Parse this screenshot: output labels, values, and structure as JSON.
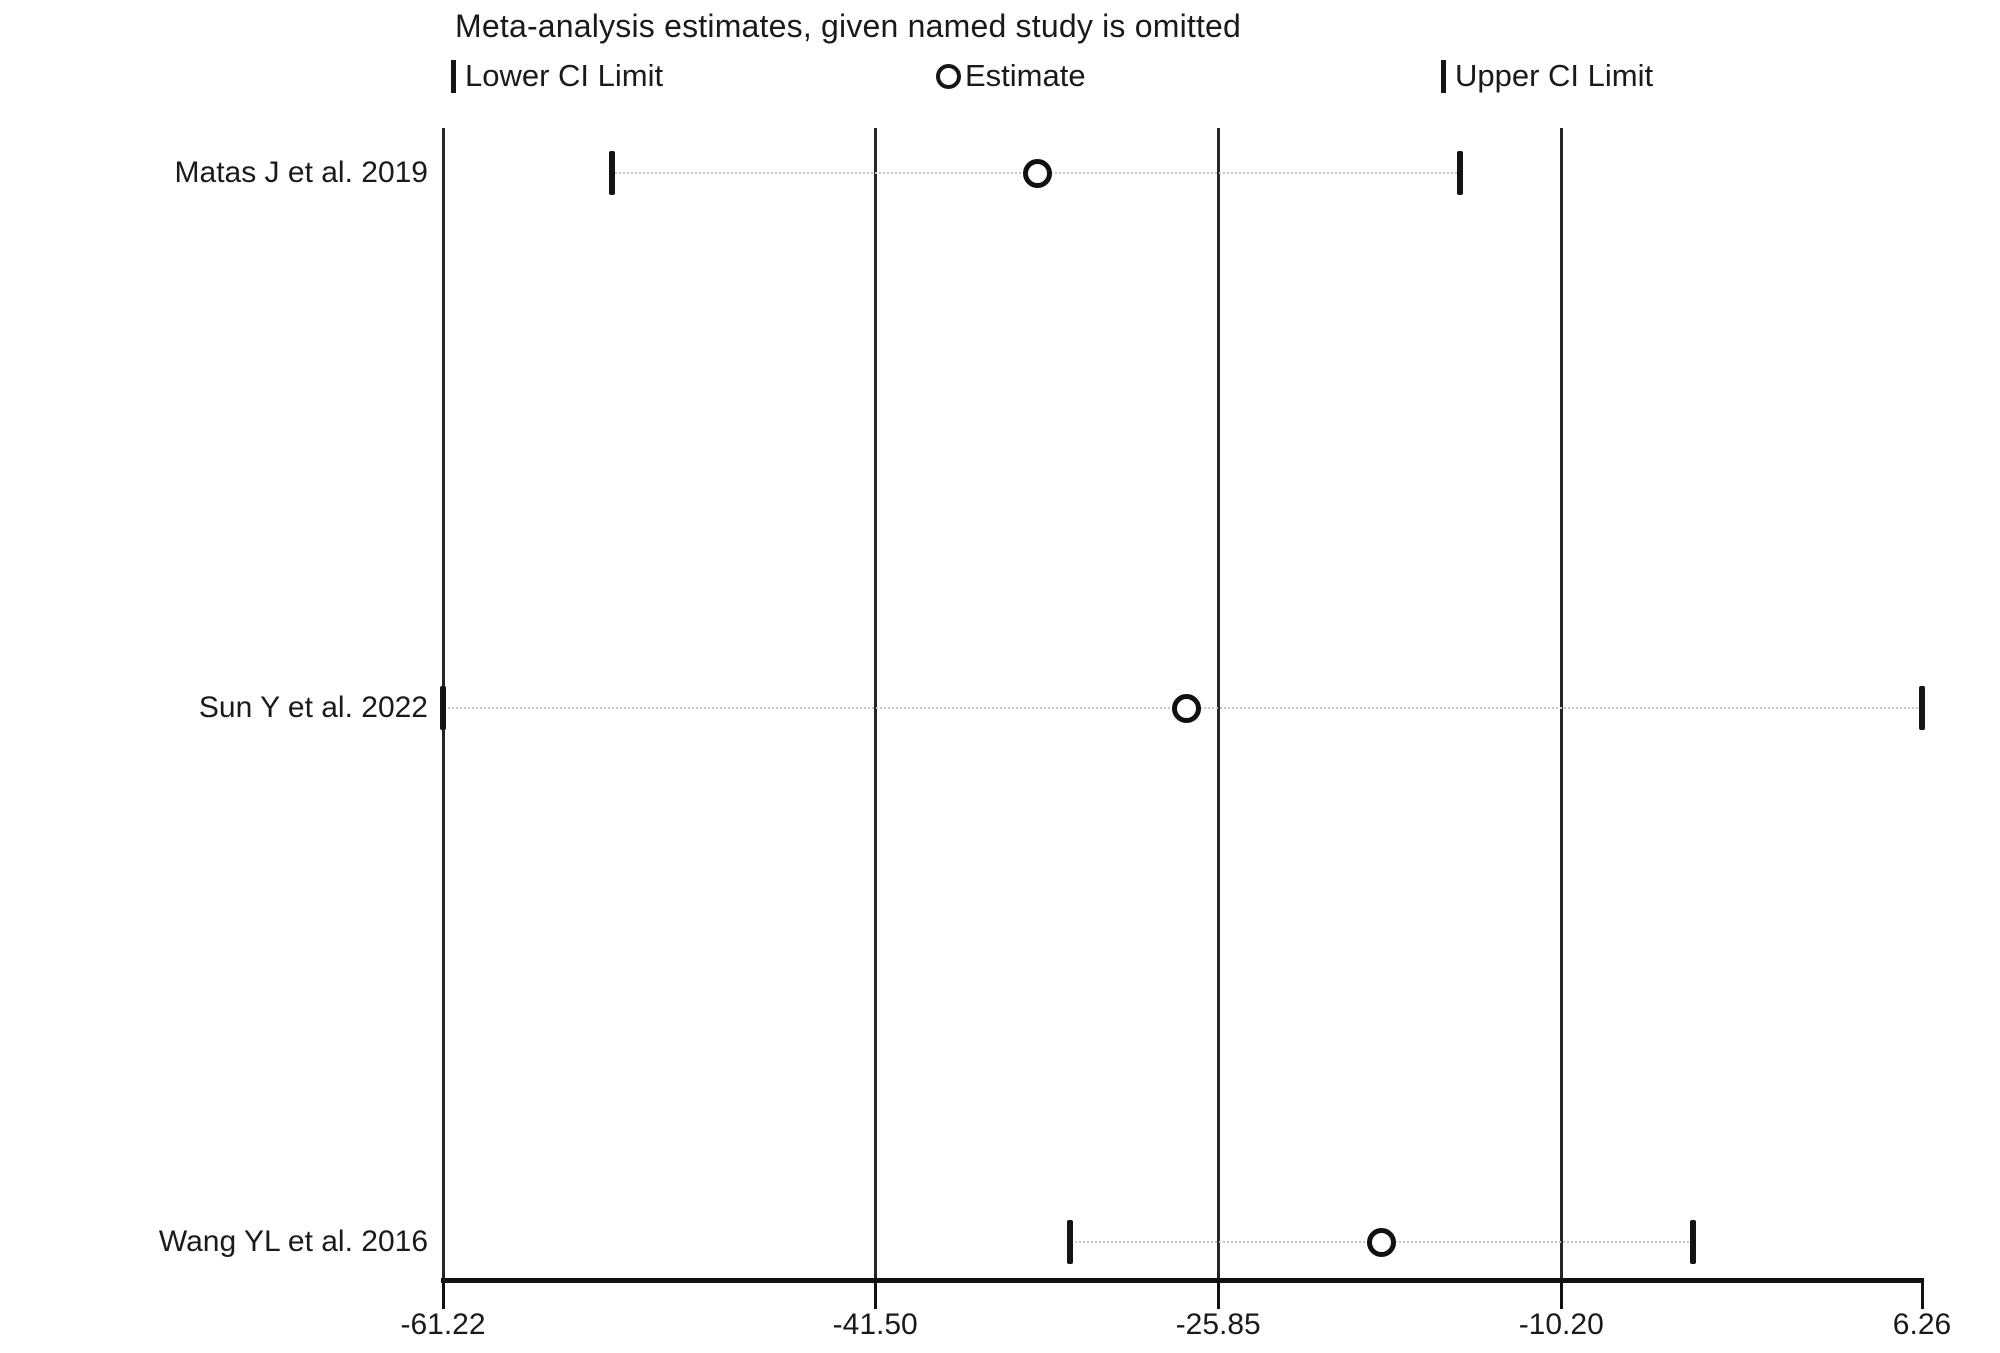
{
  "title": "Meta-analysis estimates, given named study is omitted",
  "legend": {
    "lower": "Lower CI Limit",
    "estimate": "Estimate",
    "upper": "Upper CI Limit"
  },
  "chart_data": {
    "type": "scatter",
    "variant": "leave-one-out-meta-analysis-forest",
    "title": "Meta-analysis estimates, given named study is omitted",
    "x_axis": {
      "min": -61.22,
      "max": 6.26,
      "tick_values": [
        -61.22,
        -41.5,
        -25.85,
        -10.2,
        6.26
      ],
      "tick_labels": [
        "-61.22",
        "-41.50",
        "-25.85",
        "-10.20",
        "6.26"
      ]
    },
    "reference_lines": [
      -61.22,
      -41.5,
      -25.85,
      -10.2
    ],
    "studies": [
      {
        "label": "Matas J et al. 2019",
        "lower": -53.5,
        "estimate": -34.1,
        "upper": -14.8
      },
      {
        "label": "Sun Y et al. 2022",
        "lower": -61.22,
        "estimate": -27.3,
        "upper": 6.26
      },
      {
        "label": "Wang YL et al. 2016",
        "lower": -32.6,
        "estimate": -18.4,
        "upper": -4.2
      }
    ],
    "legend_entries": [
      "Lower CI Limit",
      "Estimate",
      "Upper CI Limit"
    ],
    "grid": false,
    "colors": {
      "background": "#ffffff",
      "line": "#111111",
      "marker_stroke": "#111111",
      "marker_fill": "#ffffff",
      "dotted_ci_line": "#c8c8c8"
    }
  }
}
